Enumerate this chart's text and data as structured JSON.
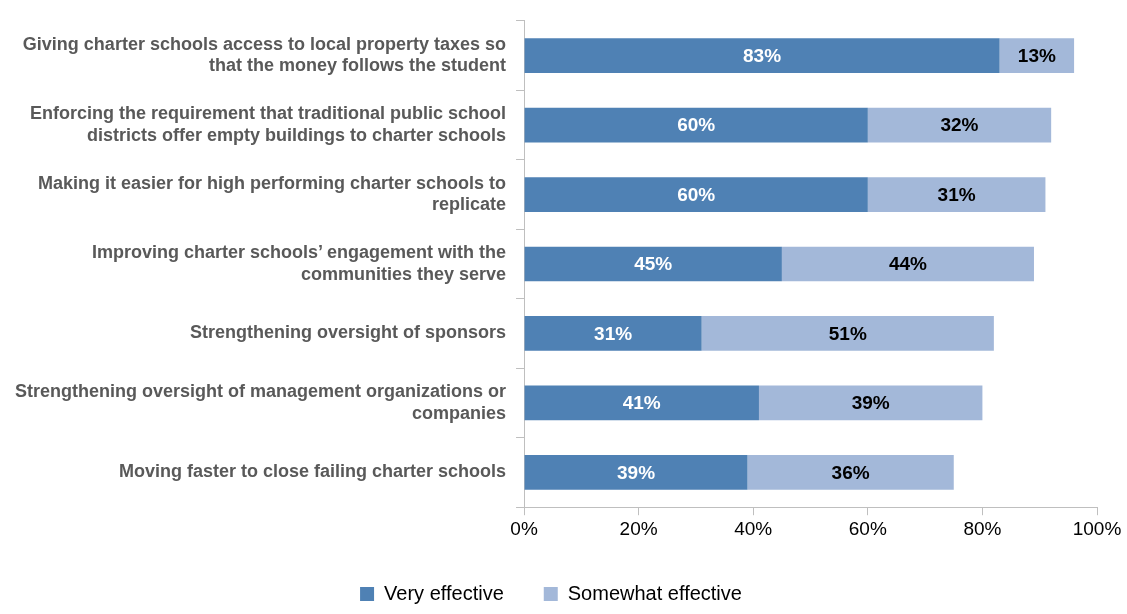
{
  "chart_data": {
    "type": "bar",
    "orientation": "horizontal",
    "stacked": true,
    "categories": [
      "Giving charter schools access to local property taxes so that the money follows the student",
      "Enforcing the requirement that traditional public school districts offer empty buildings to charter schools",
      "Making it easier for high performing charter schools to replicate",
      "Improving charter schools’ engagement with the communities they serve",
      "Strengthening oversight of sponsors",
      "Strengthening oversight of management organizations or companies",
      "Moving faster to close failing charter schools"
    ],
    "series": [
      {
        "name": "Very effective",
        "color": "#4f81b4",
        "values": [
          83,
          60,
          60,
          45,
          31,
          41,
          39
        ],
        "value_labels": [
          "83%",
          "60%",
          "60%",
          "45%",
          "31%",
          "41%",
          "39%"
        ]
      },
      {
        "name": "Somewhat effective",
        "color": "#a3b8d9",
        "values": [
          13,
          32,
          31,
          44,
          51,
          39,
          36
        ],
        "value_labels": [
          "13%",
          "32%",
          "31%",
          "44%",
          "51%",
          "39%",
          "36%"
        ]
      }
    ],
    "xlim": [
      0,
      100
    ],
    "xticks": [
      {
        "value": 0,
        "label": "0%"
      },
      {
        "value": 20,
        "label": "20%"
      },
      {
        "value": 40,
        "label": "40%"
      },
      {
        "value": 60,
        "label": "60%"
      },
      {
        "value": 80,
        "label": "80%"
      },
      {
        "value": 100,
        "label": "100%"
      }
    ],
    "grid": false,
    "legend": "bottom"
  }
}
